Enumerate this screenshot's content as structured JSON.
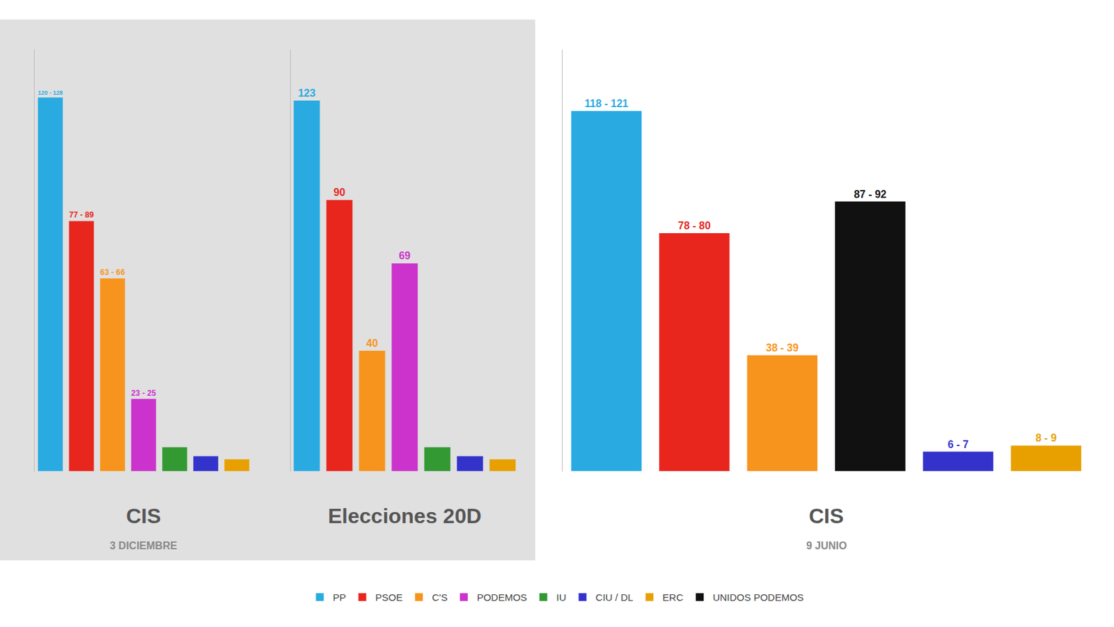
{
  "chart_data": [
    {
      "type": "bar",
      "title": "CIS",
      "subtitle": "3 DICIEMBRE",
      "categories": [
        "PP",
        "PSOE",
        "C'S",
        "PODEMOS",
        "IU",
        "CIU / DL",
        "ERC"
      ],
      "values": [
        124,
        83,
        64,
        24,
        8,
        5,
        4
      ],
      "value_labels": [
        "120 - 128",
        "77 - 89",
        "63 - 66",
        "23 - 25",
        null,
        null,
        null
      ],
      "colors": [
        "#29abe2",
        "#e8261e",
        "#f7941d",
        "#cc33cc",
        "#339933",
        "#3333cc",
        "#e8a000"
      ],
      "ylim": [
        0,
        140
      ],
      "tick_labels": false,
      "legend": "bottom"
    },
    {
      "type": "bar",
      "title": "Elecciones 20D",
      "categories": [
        "PP",
        "PSOE",
        "C'S",
        "PODEMOS",
        "IU",
        "CIU / DL",
        "ERC"
      ],
      "values": [
        123,
        90,
        40,
        69,
        8,
        5,
        4
      ],
      "value_labels": [
        "123",
        "90",
        "40",
        "69",
        null,
        null,
        null
      ],
      "colors": [
        "#29abe2",
        "#e8261e",
        "#f7941d",
        "#cc33cc",
        "#339933",
        "#3333cc",
        "#e8a000"
      ],
      "ylim": [
        0,
        140
      ],
      "tick_labels": false,
      "legend": "bottom"
    },
    {
      "type": "bar",
      "title": "CIS",
      "subtitle": "9 JUNIO",
      "categories": [
        "PP",
        "PSOE",
        "C'S",
        "UNIDOS PODEMOS",
        "CIU / DL",
        "ERC"
      ],
      "values": [
        119.5,
        79,
        38.5,
        89.5,
        6.5,
        8.5
      ],
      "value_labels": [
        "118 - 121",
        "78 - 80",
        "38 - 39",
        "87 - 92",
        "6 - 7",
        "8 - 9"
      ],
      "colors": [
        "#29abe2",
        "#e8261e",
        "#f7941d",
        "#111111",
        "#3333cc",
        "#e8a000"
      ],
      "ylim": [
        0,
        140
      ],
      "tick_labels": false,
      "legend": "bottom"
    }
  ]
}
